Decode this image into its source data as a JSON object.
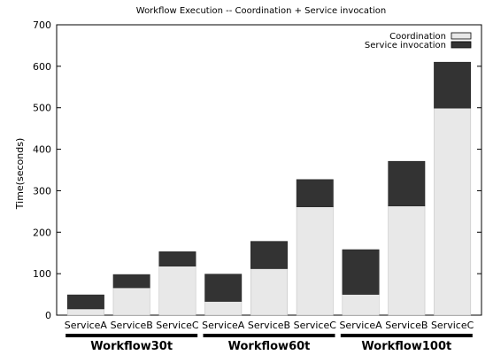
{
  "chart_data": {
    "type": "bar",
    "stacked": true,
    "title": "Workflow Execution -- Coordination + Service invocation",
    "xlabel": "",
    "ylabel": "Time(seconds)",
    "ylim": [
      0,
      700
    ],
    "yticks": [
      0,
      100,
      200,
      300,
      400,
      500,
      600,
      700
    ],
    "grid": false,
    "legend_position": "top-right",
    "groups": [
      "Workflow30t",
      "Workflow60t",
      "Workflow100t"
    ],
    "categories": [
      "ServiceA",
      "ServiceB",
      "ServiceC",
      "ServiceA",
      "ServiceB",
      "ServiceC",
      "ServiceA",
      "ServiceB",
      "ServiceC"
    ],
    "series": [
      {
        "name": "Coordination",
        "color": "#e8e8e8",
        "values": [
          15,
          66,
          118,
          33,
          112,
          261,
          50,
          263,
          499
        ]
      },
      {
        "name": "Service invocation",
        "color": "#333333",
        "values": [
          34,
          32,
          35,
          66,
          66,
          66,
          108,
          108,
          111
        ]
      }
    ]
  }
}
